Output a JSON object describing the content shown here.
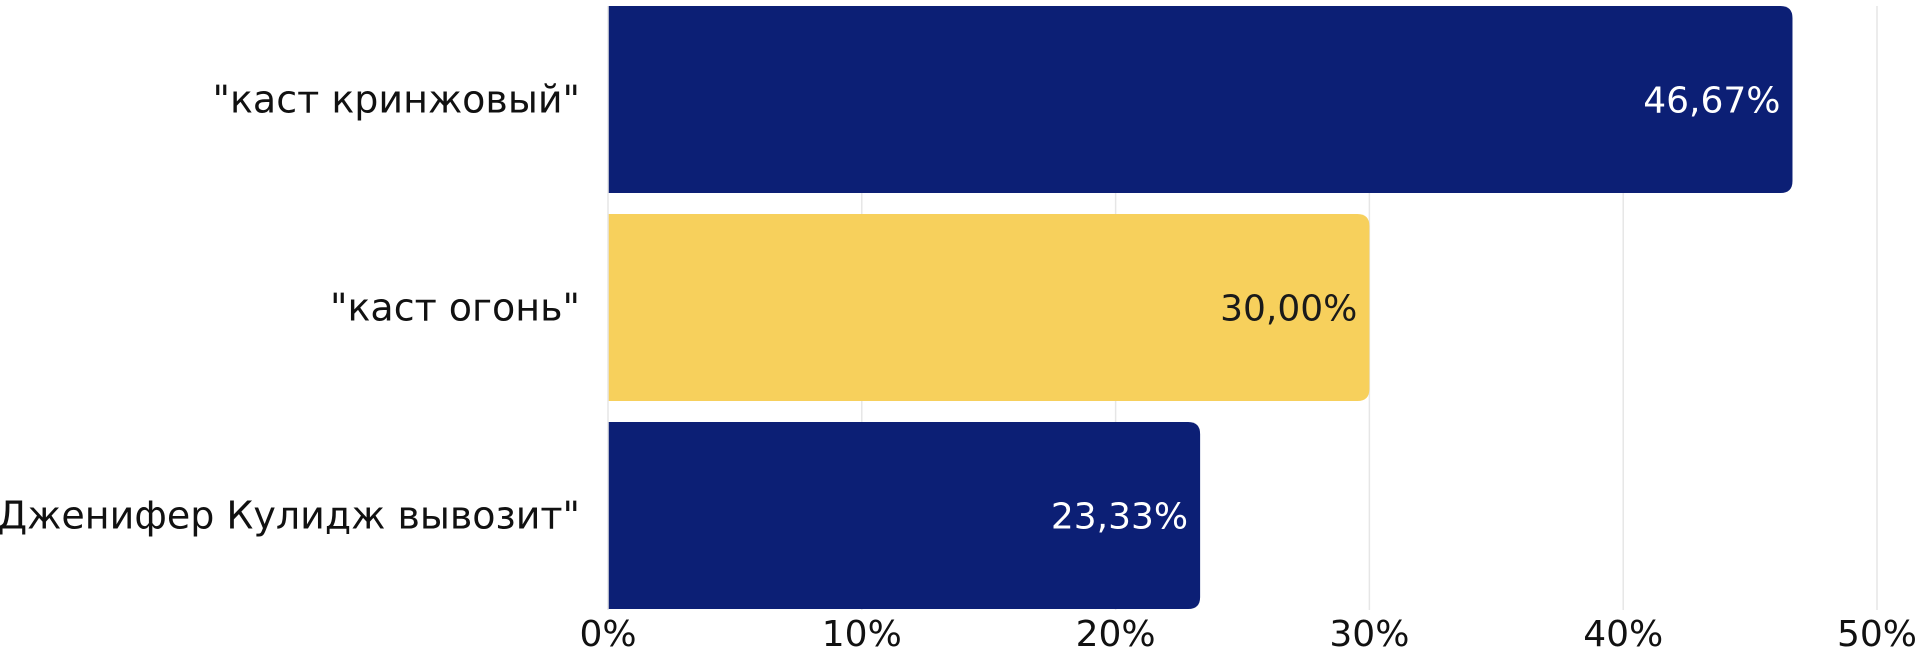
{
  "chart_data": {
    "type": "bar",
    "orientation": "horizontal",
    "categories": [
      "\"каст кринжовый\"",
      "\"каст огонь\"",
      "\"Дженифер Кулидж вывозит\""
    ],
    "values": [
      46.67,
      30.0,
      23.33
    ],
    "value_labels": [
      "46,67%",
      "30,00%",
      "23,33%"
    ],
    "xlim": [
      0,
      50
    ],
    "x_ticks": [
      0,
      10,
      20,
      30,
      40,
      50
    ],
    "x_tick_labels": [
      "0%",
      "10%",
      "20%",
      "30%",
      "40%",
      "50%"
    ],
    "title": "",
    "xlabel": "",
    "ylabel": "",
    "grid": "vertical",
    "legend": "none",
    "bar_colors": [
      "#0c1f75",
      "#f7d05c",
      "#0c1f75"
    ],
    "value_label_colors": [
      "#ffffff",
      "#1a1a1a",
      "#ffffff"
    ],
    "grid_color": "#e6e6e6"
  }
}
